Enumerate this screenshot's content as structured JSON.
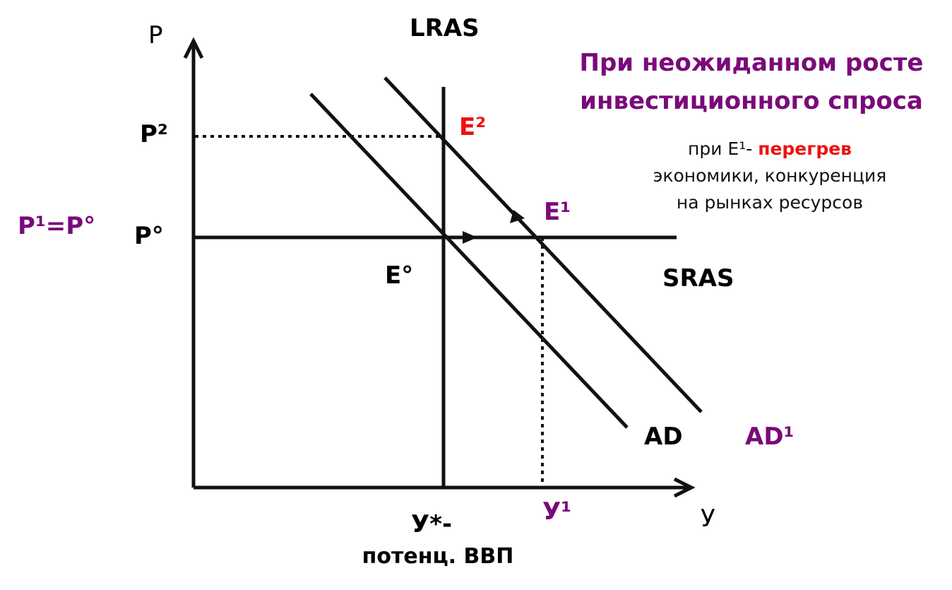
{
  "axes": {
    "y_label": "P",
    "x_label": "У"
  },
  "curves": {
    "lras": "LRAS",
    "sras": "SRAS",
    "ad": "AD",
    "ad1": "AD¹"
  },
  "points": {
    "e0": "E°",
    "e1": "E¹",
    "e2": "E²"
  },
  "price_levels": {
    "p2": "P²",
    "p0": "P°",
    "p1_eq_p0": "P¹=P°"
  },
  "output_levels": {
    "y_star": "У*-",
    "y1": "У¹",
    "y_star_caption": "потенц. ВВП"
  },
  "title": {
    "line1": "При неожиданном росте",
    "line2": "инвестиционного спроса"
  },
  "note": {
    "prefix": "при E¹- ",
    "highlight": "перегрев",
    "line2": "экономики, конкуренция",
    "line3": "на рынках ресурсов"
  },
  "colors": {
    "accent_purple": "#7a0a7a",
    "accent_red": "#ee1111",
    "line": "#111111"
  }
}
